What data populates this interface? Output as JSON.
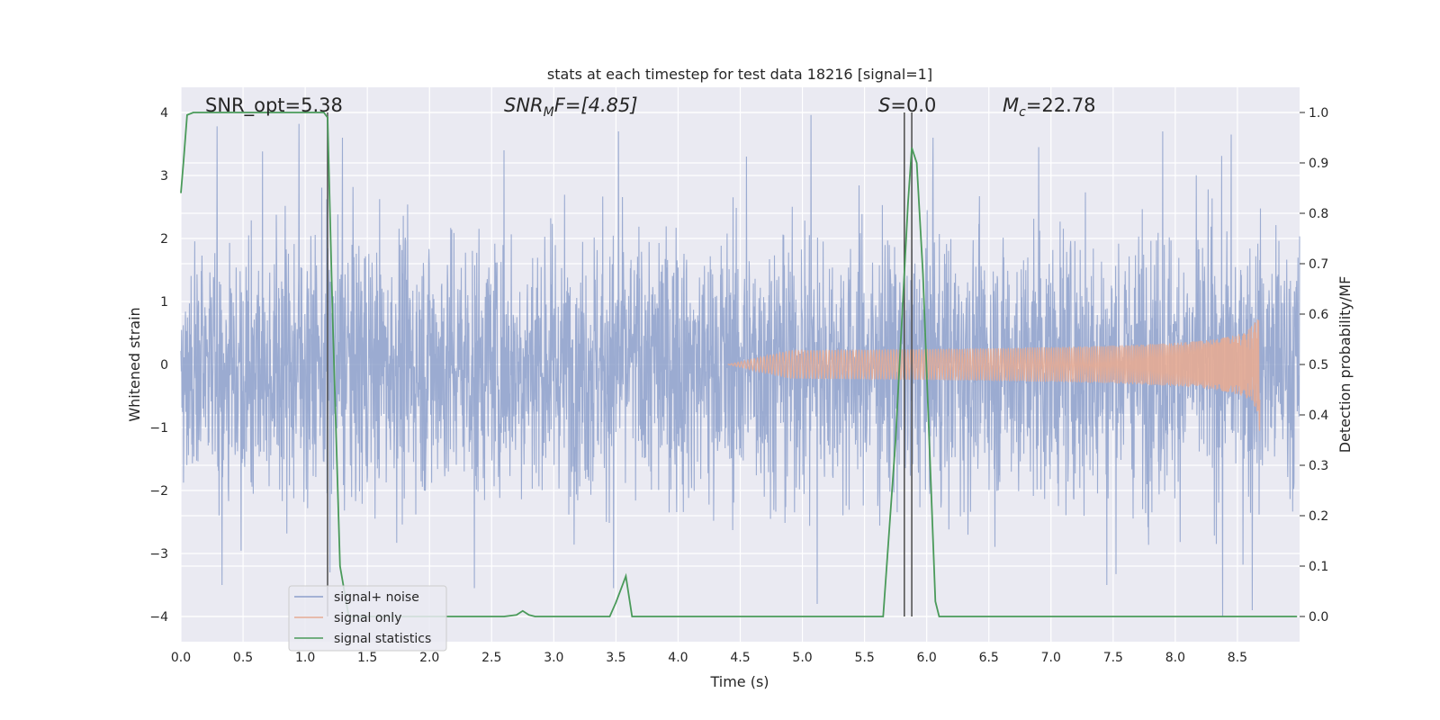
{
  "chart_data": {
    "type": "line",
    "title": "stats at each timestep for test data 18216 [signal=1]",
    "xlabel": "Time (s)",
    "ylabel": "Whitened strain",
    "y2label": "Detection probability/MF",
    "xlim": [
      0.0,
      9.0
    ],
    "ylim": [
      -4.4,
      4.4
    ],
    "y2lim": [
      -0.05,
      1.05
    ],
    "xticks": [
      "0.0",
      "0.5",
      "1.0",
      "1.5",
      "2.0",
      "2.5",
      "3.0",
      "3.5",
      "4.0",
      "4.5",
      "5.0",
      "5.5",
      "6.0",
      "6.5",
      "7.0",
      "7.5",
      "8.0",
      "8.5"
    ],
    "xtick_values": [
      0.0,
      0.5,
      1.0,
      1.5,
      2.0,
      2.5,
      3.0,
      3.5,
      4.0,
      4.5,
      5.0,
      5.5,
      6.0,
      6.5,
      7.0,
      7.5,
      8.0,
      8.5
    ],
    "yticks": [
      "−4",
      "−3",
      "−2",
      "−1",
      "0",
      "1",
      "2",
      "3",
      "4"
    ],
    "ytick_values": [
      -4,
      -3,
      -2,
      -1,
      0,
      1,
      2,
      3,
      4
    ],
    "y2ticks": [
      "0.0",
      "0.1",
      "0.2",
      "0.3",
      "0.4",
      "0.5",
      "0.6",
      "0.7",
      "0.8",
      "0.9",
      "1.0"
    ],
    "y2tick_values": [
      0.0,
      0.1,
      0.2,
      0.3,
      0.4,
      0.5,
      0.6,
      0.7,
      0.8,
      0.9,
      1.0
    ],
    "grid": true,
    "legend_placement": "lower-left",
    "annotations": {
      "snr_opt": "SNR_opt=5.38",
      "snr_mf_prefix": "SNR",
      "snr_mf_sub": "M",
      "snr_mf_suffix": "F=[4.85]",
      "s_prefix": "S",
      "s_suffix": "=0.0",
      "mc_prefix": "M",
      "mc_sub": "c",
      "mc_suffix": "=22.78"
    },
    "vertical_lines": [
      1.18,
      5.82,
      5.88
    ],
    "series": [
      {
        "name": "signal+ noise",
        "axis": "left",
        "color": "#8da0cb",
        "style": "noise",
        "x_range": [
          0.0,
          9.0
        ],
        "amplitude_hint": 2.0,
        "peaks": [
          [
            0.29,
            3.78
          ],
          [
            0.33,
            -3.5
          ],
          [
            0.95,
            3.82
          ],
          [
            1.2,
            -3.3
          ],
          [
            1.3,
            3.6
          ],
          [
            2.36,
            -3.55
          ],
          [
            3.48,
            -3.55
          ],
          [
            3.52,
            3.7
          ],
          [
            5.07,
            3.96
          ],
          [
            5.12,
            -3.8
          ],
          [
            6.05,
            3.6
          ],
          [
            7.45,
            -3.5
          ],
          [
            7.9,
            3.7
          ],
          [
            8.38,
            -4.0
          ],
          [
            8.45,
            3.65
          ],
          [
            8.62,
            -3.9
          ],
          [
            2.6,
            3.4
          ],
          [
            4.55,
            3.3
          ],
          [
            6.9,
            3.45
          ]
        ]
      },
      {
        "name": "signal only",
        "axis": "left",
        "color": "#e5ab94",
        "style": "chirp",
        "x_range": [
          4.4,
          8.68
        ],
        "peak_amplitude": 1.25
      },
      {
        "name": "signal statistics",
        "axis": "right",
        "color": "#4a9a5a",
        "style": "line",
        "x": [
          0.0,
          0.02,
          0.05,
          0.1,
          1.15,
          1.18,
          1.22,
          1.28,
          1.35,
          2.6,
          2.7,
          2.75,
          2.8,
          2.85,
          3.45,
          3.5,
          3.58,
          3.63,
          3.7,
          5.65,
          5.75,
          5.85,
          5.88,
          5.92,
          5.97,
          6.07,
          6.1,
          8.98
        ],
        "values": [
          0.84,
          0.9,
          0.995,
          1.0,
          1.0,
          0.99,
          0.6,
          0.1,
          0.0,
          0.0,
          0.003,
          0.011,
          0.003,
          0.0,
          0.0,
          0.028,
          0.08,
          0.0,
          0.0,
          0.0,
          0.35,
          0.82,
          0.93,
          0.9,
          0.68,
          0.03,
          0.0,
          0.0
        ]
      }
    ]
  }
}
